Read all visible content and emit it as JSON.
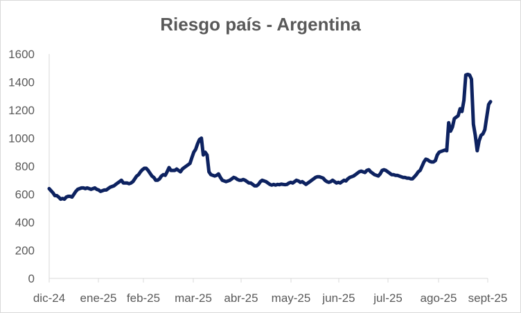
{
  "chart_data": {
    "type": "line",
    "title": "Riesgo país - Argentina",
    "xlabel": "",
    "ylabel": "",
    "ylim": [
      0,
      1600
    ],
    "yticks": [
      0,
      200,
      400,
      600,
      800,
      1000,
      1200,
      1400,
      1600
    ],
    "xticks": [
      "dic-24",
      "ene-25",
      "feb-25",
      "mar-25",
      "abr-25",
      "may-25",
      "jun-25",
      "jul-25",
      "ago-25",
      "sept-25"
    ],
    "grid": false,
    "legend": "none",
    "line_color": "#0d2260",
    "series": [
      {
        "values": [
          [
            0,
            640
          ],
          [
            1,
            625
          ],
          [
            2,
            610
          ],
          [
            3,
            590
          ],
          [
            4,
            590
          ],
          [
            5,
            580
          ],
          [
            6,
            565
          ],
          [
            7,
            570
          ],
          [
            8,
            565
          ],
          [
            9,
            580
          ],
          [
            10,
            585
          ],
          [
            11,
            585
          ],
          [
            12,
            580
          ],
          [
            13,
            600
          ],
          [
            14,
            620
          ],
          [
            15,
            635
          ],
          [
            16,
            640
          ],
          [
            17,
            645
          ],
          [
            18,
            645
          ],
          [
            19,
            640
          ],
          [
            20,
            645
          ],
          [
            21,
            640
          ],
          [
            22,
            635
          ],
          [
            23,
            640
          ],
          [
            24,
            645
          ],
          [
            25,
            635
          ],
          [
            26,
            630
          ],
          [
            27,
            620
          ],
          [
            28,
            625
          ],
          [
            29,
            630
          ],
          [
            30,
            630
          ],
          [
            31,
            640
          ],
          [
            32,
            650
          ],
          [
            33,
            655
          ],
          [
            34,
            660
          ],
          [
            35,
            670
          ],
          [
            36,
            680
          ],
          [
            37,
            690
          ],
          [
            38,
            700
          ],
          [
            39,
            680
          ],
          [
            40,
            680
          ],
          [
            41,
            680
          ],
          [
            42,
            675
          ],
          [
            43,
            680
          ],
          [
            44,
            690
          ],
          [
            45,
            710
          ],
          [
            46,
            730
          ],
          [
            47,
            740
          ],
          [
            48,
            760
          ],
          [
            49,
            775
          ],
          [
            50,
            785
          ],
          [
            51,
            785
          ],
          [
            52,
            770
          ],
          [
            53,
            750
          ],
          [
            54,
            730
          ],
          [
            55,
            720
          ],
          [
            56,
            700
          ],
          [
            57,
            700
          ],
          [
            58,
            710
          ],
          [
            59,
            730
          ],
          [
            60,
            740
          ],
          [
            61,
            735
          ],
          [
            62,
            760
          ],
          [
            63,
            790
          ],
          [
            64,
            770
          ],
          [
            65,
            770
          ],
          [
            66,
            770
          ],
          [
            67,
            780
          ],
          [
            68,
            770
          ],
          [
            69,
            760
          ],
          [
            70,
            780
          ],
          [
            71,
            790
          ],
          [
            72,
            800
          ],
          [
            73,
            810
          ],
          [
            74,
            820
          ],
          [
            75,
            860
          ],
          [
            76,
            900
          ],
          [
            77,
            920
          ],
          [
            78,
            960
          ],
          [
            79,
            990
          ],
          [
            80,
            1000
          ],
          [
            81,
            880
          ],
          [
            82,
            900
          ],
          [
            83,
            880
          ],
          [
            84,
            760
          ],
          [
            85,
            740
          ],
          [
            86,
            735
          ],
          [
            87,
            730
          ],
          [
            88,
            735
          ],
          [
            89,
            745
          ],
          [
            90,
            720
          ],
          [
            91,
            700
          ],
          [
            92,
            695
          ],
          [
            93,
            690
          ],
          [
            94,
            695
          ],
          [
            95,
            700
          ],
          [
            96,
            710
          ],
          [
            97,
            720
          ],
          [
            98,
            715
          ],
          [
            99,
            705
          ],
          [
            100,
            700
          ],
          [
            101,
            700
          ],
          [
            102,
            705
          ],
          [
            103,
            700
          ],
          [
            104,
            690
          ],
          [
            105,
            680
          ],
          [
            106,
            680
          ],
          [
            107,
            670
          ],
          [
            108,
            660
          ],
          [
            109,
            660
          ],
          [
            110,
            670
          ],
          [
            111,
            690
          ],
          [
            112,
            700
          ],
          [
            113,
            695
          ],
          [
            114,
            690
          ],
          [
            115,
            680
          ],
          [
            116,
            670
          ],
          [
            117,
            665
          ],
          [
            118,
            670
          ],
          [
            119,
            665
          ],
          [
            120,
            670
          ],
          [
            121,
            668
          ],
          [
            122,
            672
          ],
          [
            123,
            670
          ],
          [
            124,
            668
          ],
          [
            125,
            670
          ],
          [
            126,
            680
          ],
          [
            127,
            685
          ],
          [
            128,
            680
          ],
          [
            129,
            690
          ],
          [
            130,
            700
          ],
          [
            131,
            695
          ],
          [
            132,
            685
          ],
          [
            133,
            690
          ],
          [
            134,
            680
          ],
          [
            135,
            670
          ],
          [
            136,
            680
          ],
          [
            137,
            690
          ],
          [
            138,
            700
          ],
          [
            139,
            710
          ],
          [
            140,
            720
          ],
          [
            141,
            725
          ],
          [
            142,
            725
          ],
          [
            143,
            720
          ],
          [
            144,
            715
          ],
          [
            145,
            700
          ],
          [
            146,
            690
          ],
          [
            147,
            685
          ],
          [
            148,
            690
          ],
          [
            149,
            700
          ],
          [
            150,
            690
          ],
          [
            151,
            680
          ],
          [
            152,
            685
          ],
          [
            153,
            680
          ],
          [
            154,
            690
          ],
          [
            155,
            700
          ],
          [
            156,
            695
          ],
          [
            157,
            710
          ],
          [
            158,
            720
          ],
          [
            159,
            725
          ],
          [
            160,
            730
          ],
          [
            161,
            740
          ],
          [
            162,
            750
          ],
          [
            163,
            760
          ],
          [
            164,
            765
          ],
          [
            165,
            760
          ],
          [
            166,
            755
          ],
          [
            167,
            770
          ],
          [
            168,
            775
          ],
          [
            169,
            760
          ],
          [
            170,
            750
          ],
          [
            171,
            740
          ],
          [
            172,
            735
          ],
          [
            173,
            730
          ],
          [
            174,
            745
          ],
          [
            175,
            770
          ],
          [
            176,
            775
          ],
          [
            177,
            770
          ],
          [
            178,
            760
          ],
          [
            179,
            750
          ],
          [
            180,
            740
          ],
          [
            181,
            740
          ],
          [
            182,
            735
          ],
          [
            183,
            735
          ],
          [
            184,
            730
          ],
          [
            185,
            725
          ],
          [
            186,
            720
          ],
          [
            187,
            720
          ],
          [
            188,
            715
          ],
          [
            189,
            715
          ],
          [
            190,
            710
          ],
          [
            191,
            710
          ],
          [
            192,
            725
          ],
          [
            193,
            740
          ],
          [
            194,
            760
          ],
          [
            195,
            770
          ],
          [
            196,
            800
          ],
          [
            197,
            830
          ],
          [
            198,
            850
          ],
          [
            199,
            845
          ],
          [
            200,
            835
          ],
          [
            201,
            830
          ],
          [
            202,
            830
          ],
          [
            203,
            840
          ],
          [
            204,
            880
          ],
          [
            205,
            900
          ],
          [
            206,
            905
          ],
          [
            207,
            910
          ],
          [
            208,
            915
          ],
          [
            209,
            910
          ],
          [
            210,
            1110
          ],
          [
            211,
            1050
          ],
          [
            212,
            1080
          ],
          [
            213,
            1140
          ],
          [
            214,
            1150
          ],
          [
            215,
            1160
          ],
          [
            216,
            1210
          ],
          [
            217,
            1190
          ],
          [
            218,
            1270
          ],
          [
            219,
            1450
          ],
          [
            220,
            1455
          ],
          [
            221,
            1450
          ],
          [
            222,
            1420
          ],
          [
            223,
            1100
          ],
          [
            224,
            1020
          ],
          [
            225,
            910
          ],
          [
            226,
            980
          ],
          [
            227,
            1020
          ],
          [
            228,
            1030
          ],
          [
            229,
            1060
          ],
          [
            230,
            1150
          ],
          [
            231,
            1240
          ],
          [
            232,
            1260
          ]
        ]
      }
    ]
  }
}
